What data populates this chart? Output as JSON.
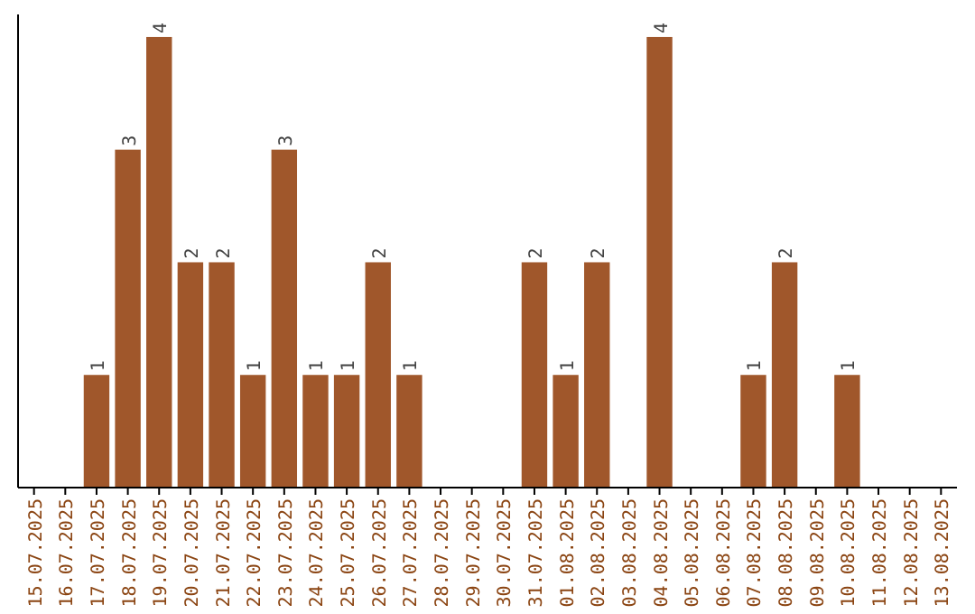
{
  "chart_data": {
    "type": "bar",
    "categories": [
      "15.07.2025",
      "16.07.2025",
      "17.07.2025",
      "18.07.2025",
      "19.07.2025",
      "20.07.2025",
      "21.07.2025",
      "22.07.2025",
      "23.07.2025",
      "24.07.2025",
      "25.07.2025",
      "26.07.2025",
      "27.07.2025",
      "28.07.2025",
      "29.07.2025",
      "30.07.2025",
      "31.07.2025",
      "01.08.2025",
      "02.08.2025",
      "03.08.2025",
      "04.08.2025",
      "05.08.2025",
      "06.08.2025",
      "07.08.2025",
      "08.08.2025",
      "09.08.2025",
      "10.08.2025",
      "11.08.2025",
      "12.08.2025",
      "13.08.2025"
    ],
    "values": [
      0,
      0,
      1,
      3,
      4,
      2,
      2,
      1,
      3,
      1,
      1,
      2,
      1,
      0,
      0,
      0,
      2,
      1,
      2,
      0,
      4,
      0,
      0,
      1,
      2,
      0,
      1,
      0,
      0,
      0
    ],
    "value_labels": [
      null,
      null,
      "1",
      "3",
      "4",
      "2",
      "2",
      "1",
      "3",
      "1",
      "1",
      "2",
      "1",
      null,
      null,
      null,
      "2",
      "1",
      "2",
      null,
      "4",
      null,
      null,
      "1",
      "2",
      null,
      "1",
      null,
      null,
      null
    ],
    "color": "#a0572b",
    "ylim": [
      0,
      4.2
    ],
    "tick_labels": "x"
  }
}
